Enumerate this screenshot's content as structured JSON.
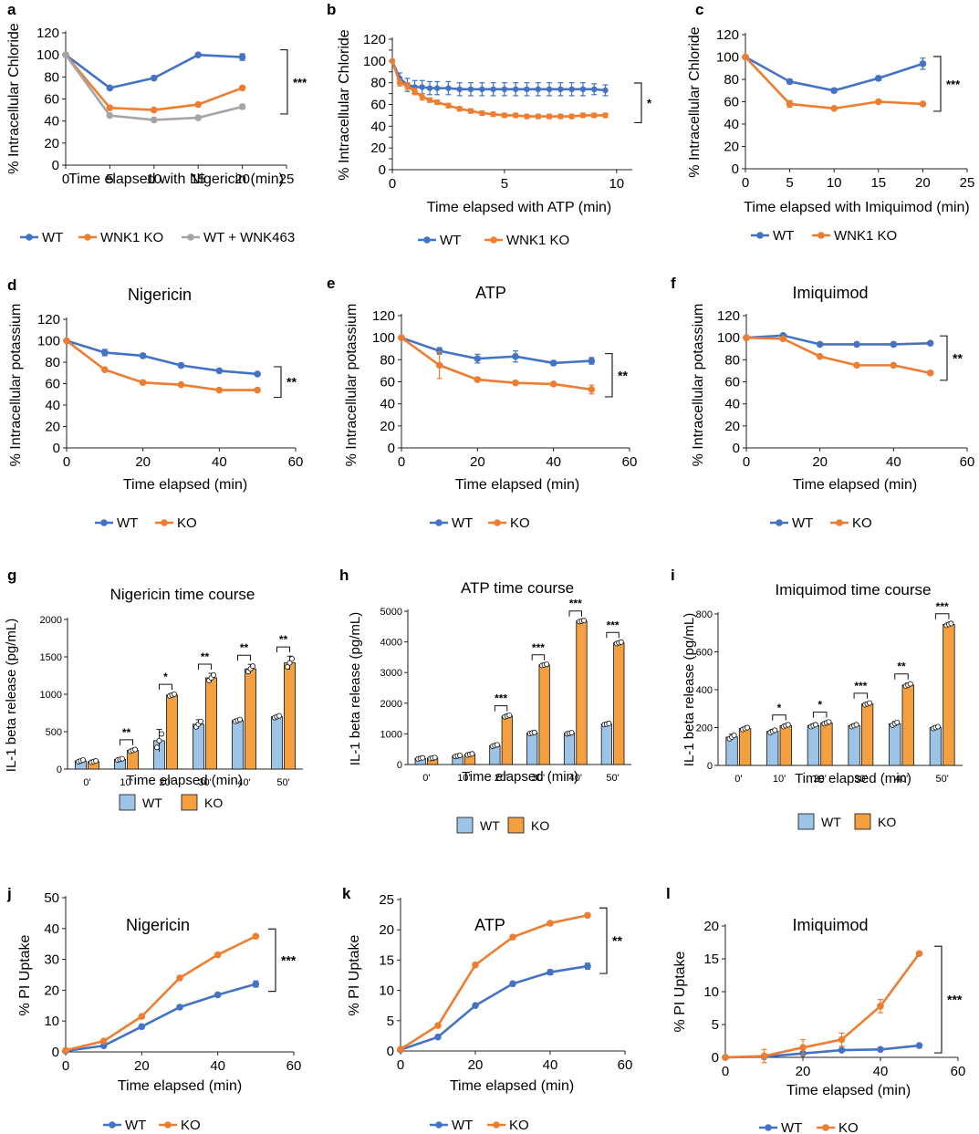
{
  "colors": {
    "wt": "#4472c4",
    "ko": "#ed7d31",
    "wnk463": "#a5a5a5",
    "wt_bar": "#9dc3e6",
    "ko_bar": "#f4a040"
  },
  "chart_data": [
    {
      "panel": "a",
      "type": "line",
      "title": "",
      "xlabel": "Time elapsed with Nigericin (min)",
      "ylabel": "% Intracellular Chloride",
      "xlim": [
        0,
        25
      ],
      "xticks": [
        0,
        5,
        10,
        15,
        20,
        25
      ],
      "ylim": [
        0,
        120
      ],
      "yticks": [
        0,
        20,
        40,
        60,
        80,
        100,
        120
      ],
      "series": [
        {
          "name": "WT",
          "color": "#4472c4",
          "x": [
            0,
            5,
            10,
            15,
            20
          ],
          "y": [
            100,
            70,
            79,
            100,
            98
          ],
          "err": [
            0,
            1,
            1,
            1,
            3
          ]
        },
        {
          "name": "WNK1 KO",
          "color": "#ed7d31",
          "x": [
            0,
            5,
            10,
            15,
            20
          ],
          "y": [
            100,
            52,
            50,
            55,
            70
          ],
          "err": [
            0,
            1,
            1,
            1,
            1
          ]
        },
        {
          "name": "WT + WNK463",
          "color": "#a5a5a5",
          "x": [
            0,
            5,
            10,
            15,
            20
          ],
          "y": [
            100,
            45,
            41,
            43,
            53
          ],
          "err": [
            0,
            1,
            1,
            1,
            2
          ]
        }
      ],
      "significance": "***"
    },
    {
      "panel": "b",
      "type": "line",
      "title": "",
      "xlabel": "Time elapsed with ATP (min)",
      "ylabel": "% Intracellular Chloride",
      "xlim": [
        0,
        10.7
      ],
      "xticks": [
        0,
        5,
        10
      ],
      "ylim": [
        0,
        120
      ],
      "yticks": [
        0,
        10,
        20,
        30,
        40,
        50,
        60,
        70,
        80,
        90,
        100,
        110,
        120
      ],
      "ytick_labels": [
        "0",
        "20",
        "40",
        "60",
        "80",
        "100",
        "120"
      ],
      "series": [
        {
          "name": "WT",
          "color": "#4472c4",
          "x": [
            0,
            0.33,
            0.67,
            1,
            1.33,
            1.67,
            2,
            2.5,
            3,
            3.5,
            4,
            4.5,
            5,
            5.5,
            6,
            6.5,
            7,
            7.5,
            8,
            8.5,
            9,
            9.5
          ],
          "y": [
            100,
            84,
            78,
            76,
            76,
            75,
            75,
            75,
            74,
            74,
            74,
            74,
            74,
            74,
            74,
            74,
            74,
            74,
            74,
            74,
            74,
            73
          ],
          "err": [
            0,
            5,
            6,
            6,
            6,
            6,
            6,
            6,
            6,
            6,
            6,
            6,
            6,
            6,
            6,
            6,
            6,
            6,
            6,
            6,
            5,
            5
          ]
        },
        {
          "name": "WNK1 KO",
          "color": "#ed7d31",
          "x": [
            0,
            0.33,
            0.67,
            1,
            1.33,
            1.67,
            2,
            2.5,
            3,
            3.5,
            4,
            4.5,
            5,
            5.5,
            6,
            6.5,
            7,
            7.5,
            8,
            8.5,
            9,
            9.5
          ],
          "y": [
            100,
            80,
            77,
            72,
            67,
            64,
            62,
            59,
            56,
            54,
            52,
            51,
            50,
            50,
            49,
            49,
            49,
            49,
            49,
            50,
            50,
            50
          ],
          "err": [
            0,
            3,
            3,
            3,
            3,
            2,
            2,
            2,
            2,
            2,
            2,
            2,
            2,
            2,
            2,
            2,
            2,
            2,
            2,
            2,
            2,
            2
          ]
        }
      ],
      "significance": "*"
    },
    {
      "panel": "c",
      "type": "line",
      "title": "",
      "xlabel": "Time elapsed with Imiquimod (min)",
      "ylabel": "% Intracellular Chloride",
      "xlim": [
        0,
        25
      ],
      "xticks": [
        0,
        5,
        10,
        15,
        20,
        25
      ],
      "ylim": [
        0,
        120
      ],
      "yticks": [
        0,
        20,
        40,
        60,
        80,
        100,
        120
      ],
      "series": [
        {
          "name": "WT",
          "color": "#4472c4",
          "x": [
            0,
            5,
            10,
            15,
            20
          ],
          "y": [
            100,
            78,
            70,
            81,
            94
          ],
          "err": [
            0,
            2,
            2,
            2,
            5
          ]
        },
        {
          "name": "WNK1 KO",
          "color": "#ed7d31",
          "x": [
            0,
            5,
            10,
            15,
            20
          ],
          "y": [
            100,
            58,
            54,
            60,
            58
          ],
          "err": [
            0,
            3,
            1,
            1,
            1
          ]
        }
      ],
      "significance": "***"
    },
    {
      "panel": "d",
      "type": "line",
      "title": "Nigericin",
      "xlabel": "Time elapsed (min)",
      "ylabel": "% Intracellular potassium",
      "xlim": [
        0,
        60
      ],
      "xticks": [
        0,
        20,
        40,
        60
      ],
      "ylim": [
        0,
        120
      ],
      "yticks": [
        0,
        20,
        40,
        60,
        80,
        100,
        120
      ],
      "series": [
        {
          "name": "WT",
          "color": "#4472c4",
          "x": [
            0,
            10,
            20,
            30,
            40,
            50
          ],
          "y": [
            100,
            89,
            86,
            77,
            72,
            69
          ],
          "err": [
            0,
            3,
            2,
            2,
            1,
            1
          ]
        },
        {
          "name": "KO",
          "color": "#ed7d31",
          "x": [
            0,
            10,
            20,
            30,
            40,
            50
          ],
          "y": [
            100,
            73,
            61,
            59,
            54,
            54
          ],
          "err": [
            0,
            1,
            1,
            1,
            1,
            1
          ]
        }
      ],
      "significance": "**"
    },
    {
      "panel": "e",
      "type": "line",
      "title": "ATP",
      "xlabel": "Time elapsed (min)",
      "ylabel": "% Intracellular potassium",
      "xlim": [
        0,
        60
      ],
      "xticks": [
        0,
        20,
        40,
        60
      ],
      "ylim": [
        0,
        120
      ],
      "yticks": [
        0,
        20,
        40,
        60,
        80,
        100,
        120
      ],
      "series": [
        {
          "name": "WT",
          "color": "#4472c4",
          "x": [
            0,
            10,
            20,
            30,
            40,
            50
          ],
          "y": [
            100,
            88,
            81,
            83,
            77,
            79
          ],
          "err": [
            0,
            3,
            4,
            5,
            2,
            3
          ]
        },
        {
          "name": "KO",
          "color": "#ed7d31",
          "x": [
            0,
            10,
            20,
            30,
            40,
            50
          ],
          "y": [
            100,
            75,
            62,
            59,
            58,
            53
          ],
          "err": [
            0,
            12,
            1,
            1,
            1,
            4
          ]
        }
      ],
      "significance": "**"
    },
    {
      "panel": "f",
      "type": "line",
      "title": "Imiquimod",
      "xlabel": "Time elapsed (min)",
      "ylabel": "% Intracellular potassium",
      "xlim": [
        0,
        60
      ],
      "xticks": [
        0,
        20,
        40,
        60
      ],
      "ylim": [
        0,
        120
      ],
      "yticks": [
        0,
        20,
        40,
        60,
        80,
        100,
        120
      ],
      "series": [
        {
          "name": "WT",
          "color": "#4472c4",
          "x": [
            0,
            10,
            20,
            30,
            40,
            50
          ],
          "y": [
            100,
            102,
            94,
            94,
            94,
            95
          ],
          "err": [
            0,
            1,
            1,
            1,
            1,
            1
          ]
        },
        {
          "name": "KO",
          "color": "#ed7d31",
          "x": [
            0,
            10,
            20,
            30,
            40,
            50
          ],
          "y": [
            100,
            99,
            83,
            75,
            75,
            68
          ],
          "err": [
            0,
            1,
            1,
            1,
            1,
            1
          ]
        }
      ],
      "significance": "**"
    },
    {
      "panel": "g",
      "type": "bar",
      "title": "Nigericin time course",
      "xlabel": "Time elapsed (min)",
      "ylabel": "IL-1 beta release (pg/mL)",
      "categories": [
        "0'",
        "10'",
        "20'",
        "30'",
        "40'",
        "50'"
      ],
      "ylim": [
        0,
        2000
      ],
      "yticks": [
        0,
        500,
        1000,
        1500,
        2000
      ],
      "series": [
        {
          "name": "WT",
          "color": "#9dc3e6",
          "values": [
            110,
            130,
            380,
            600,
            650,
            700
          ],
          "err": [
            20,
            15,
            150,
            60,
            20,
            20
          ]
        },
        {
          "name": "KO",
          "color": "#f4a040",
          "values": [
            100,
            250,
            990,
            1220,
            1340,
            1420
          ],
          "err": [
            15,
            20,
            20,
            60,
            60,
            90
          ]
        }
      ],
      "significance": [
        "",
        "**",
        "*",
        "**",
        "**",
        "**"
      ]
    },
    {
      "panel": "h",
      "type": "bar",
      "title": "ATP time course",
      "xlabel": "Time elapsed (min)",
      "ylabel": "IL-1 beta release (pg/mL)",
      "categories": [
        "0'",
        "10'",
        "20'",
        "30'",
        "40'",
        "50'"
      ],
      "ylim": [
        0,
        5000
      ],
      "yticks": [
        0,
        1000,
        2000,
        3000,
        4000,
        5000
      ],
      "series": [
        {
          "name": "WT",
          "color": "#9dc3e6",
          "values": [
            200,
            280,
            620,
            1030,
            1020,
            1320
          ],
          "err": [
            30,
            30,
            40,
            30,
            30,
            30
          ]
        },
        {
          "name": "KO",
          "color": "#f4a040",
          "values": [
            210,
            330,
            1580,
            3250,
            4680,
            3970
          ],
          "err": [
            30,
            30,
            40,
            30,
            30,
            40
          ]
        }
      ],
      "significance": [
        "",
        "",
        "***",
        "***",
        "***",
        "***"
      ]
    },
    {
      "panel": "i",
      "type": "bar",
      "title": "Imiquimod time course",
      "xlabel": "Time elapsed (min)",
      "ylabel": "IL-1 beta release (pg/mL)",
      "categories": [
        "0'",
        "10'",
        "20'",
        "30'",
        "40'",
        "50'"
      ],
      "ylim": [
        0,
        800
      ],
      "yticks": [
        0,
        200,
        400,
        600,
        800
      ],
      "series": [
        {
          "name": "WT",
          "color": "#9dc3e6",
          "values": [
            150,
            180,
            210,
            210,
            220,
            200
          ],
          "err": [
            15,
            10,
            8,
            8,
            12,
            8
          ]
        },
        {
          "name": "KO",
          "color": "#f4a040",
          "values": [
            195,
            210,
            225,
            325,
            425,
            745
          ],
          "err": [
            8,
            8,
            8,
            8,
            10,
            8
          ]
        }
      ],
      "significance": [
        "",
        "*",
        "*",
        "***",
        "**",
        "***"
      ]
    },
    {
      "panel": "j",
      "type": "line",
      "title": "Nigericin",
      "xlabel": "Time elapsed (min)",
      "ylabel": "% PI Uptake",
      "xlim": [
        0,
        60
      ],
      "xticks": [
        0,
        20,
        40,
        60
      ],
      "ylim": [
        0,
        50
      ],
      "yticks": [
        0,
        10,
        20,
        30,
        40,
        50
      ],
      "series": [
        {
          "name": "WT",
          "color": "#4472c4",
          "x": [
            0,
            10,
            20,
            30,
            40,
            50
          ],
          "y": [
            0.3,
            2,
            8.2,
            14.5,
            18.5,
            22
          ],
          "err": [
            0,
            0.3,
            0.4,
            0.5,
            0.5,
            1
          ]
        },
        {
          "name": "KO",
          "color": "#ed7d31",
          "x": [
            0,
            10,
            20,
            30,
            40,
            50
          ],
          "y": [
            0.5,
            3.5,
            11.5,
            24,
            31.5,
            37.5
          ],
          "err": [
            0,
            0.3,
            0.4,
            0.5,
            0.5,
            0.5
          ]
        }
      ],
      "significance": "***"
    },
    {
      "panel": "k",
      "type": "line",
      "title": "ATP",
      "xlabel": "Time elapsed (min)",
      "ylabel": "% PI Uptake",
      "xlim": [
        0,
        60
      ],
      "xticks": [
        0,
        20,
        40,
        60
      ],
      "ylim": [
        0,
        25
      ],
      "yticks": [
        0,
        5,
        10,
        15,
        20,
        25
      ],
      "series": [
        {
          "name": "WT",
          "color": "#4472c4",
          "x": [
            0,
            10,
            20,
            30,
            40,
            50
          ],
          "y": [
            0.2,
            2.3,
            7.5,
            11.1,
            13,
            14
          ],
          "err": [
            0,
            0.2,
            0.2,
            0.3,
            0.4,
            0.5
          ]
        },
        {
          "name": "KO",
          "color": "#ed7d31",
          "x": [
            0,
            10,
            20,
            30,
            40,
            50
          ],
          "y": [
            0.3,
            4.2,
            14.2,
            18.8,
            21.1,
            22.4
          ],
          "err": [
            0,
            0.2,
            0.2,
            0.2,
            0.2,
            0.2
          ]
        }
      ],
      "significance": "**"
    },
    {
      "panel": "l",
      "type": "line",
      "title": "Imiquimod",
      "xlabel": "Time elapsed (min)",
      "ylabel": "% PI Uptake",
      "xlim": [
        0,
        60
      ],
      "xticks": [
        0,
        20,
        40,
        60
      ],
      "ylim": [
        0,
        20
      ],
      "yticks": [
        0,
        5,
        10,
        15,
        20
      ],
      "series": [
        {
          "name": "WT",
          "color": "#4472c4",
          "x": [
            0,
            10,
            20,
            30,
            40,
            50
          ],
          "y": [
            0,
            0.1,
            0.6,
            1.1,
            1.2,
            1.8
          ],
          "err": [
            0,
            0.1,
            0.2,
            0.2,
            0.2,
            0.2
          ]
        },
        {
          "name": "KO",
          "color": "#ed7d31",
          "x": [
            0,
            10,
            20,
            30,
            40,
            50
          ],
          "y": [
            0,
            0.2,
            1.5,
            2.7,
            7.8,
            15.8
          ],
          "err": [
            0,
            1,
            1.2,
            1,
            1,
            0.3
          ]
        }
      ],
      "significance": "***"
    }
  ]
}
